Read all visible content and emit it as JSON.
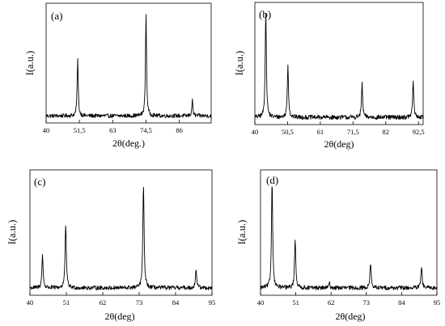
{
  "chart_data": [
    {
      "type": "line",
      "panel_label": "(a)",
      "xlabel": "2θ(deg.)",
      "ylabel": "I(a.u.)",
      "xlim": [
        40,
        97
      ],
      "xticks": [
        40,
        51.5,
        63,
        74.5,
        86
      ],
      "xtick_labels": [
        "40",
        "51,5",
        "63",
        "74,5",
        "86"
      ],
      "baseline": 0.05,
      "noise": 0.018,
      "peaks": [
        {
          "x": 50.9,
          "height": 0.52
        },
        {
          "x": 74.5,
          "height": 0.93
        },
        {
          "x": 90.5,
          "height": 0.14
        }
      ]
    },
    {
      "type": "line",
      "panel_label": "(b)",
      "xlabel": "2θ(deg)",
      "ylabel": "I(a.u.)",
      "xlim": [
        40,
        94
      ],
      "xticks": [
        40,
        50.5,
        61,
        71.5,
        82,
        92.5
      ],
      "xtick_labels": [
        "40",
        "50,5",
        "61",
        "71,5",
        "82",
        "92,5"
      ],
      "baseline": 0.05,
      "noise": 0.02,
      "peaks": [
        {
          "x": 43.5,
          "height": 0.95
        },
        {
          "x": 50.6,
          "height": 0.47
        },
        {
          "x": 74.4,
          "height": 0.3
        },
        {
          "x": 90.8,
          "height": 0.32
        }
      ]
    },
    {
      "type": "line",
      "panel_label": "(c)",
      "xlabel": "2θ(deg)",
      "ylabel": "I(a.u.)",
      "xlim": [
        40,
        95
      ],
      "xticks": [
        40,
        51,
        62,
        73,
        84,
        95
      ],
      "xtick_labels": [
        "40",
        "51",
        "62",
        "73",
        "84",
        "95"
      ],
      "baseline": 0.05,
      "noise": 0.018,
      "peaks": [
        {
          "x": 43.8,
          "height": 0.28
        },
        {
          "x": 50.8,
          "height": 0.55
        },
        {
          "x": 74.3,
          "height": 0.9
        },
        {
          "x": 90.2,
          "height": 0.16
        }
      ]
    },
    {
      "type": "line",
      "panel_label": "(d)",
      "xlabel": "2θ(deg)",
      "ylabel": "I(a.u.)",
      "xlim": [
        40,
        95
      ],
      "xticks": [
        40,
        51,
        62,
        73,
        84,
        95
      ],
      "xtick_labels": [
        "40",
        "51",
        "62",
        "73",
        "84",
        "95"
      ],
      "baseline": 0.05,
      "noise": 0.018,
      "peaks": [
        {
          "x": 43.6,
          "height": 0.93
        },
        {
          "x": 50.8,
          "height": 0.43
        },
        {
          "x": 61.5,
          "height": 0.04
        },
        {
          "x": 74.3,
          "height": 0.22
        },
        {
          "x": 90.2,
          "height": 0.18
        }
      ]
    }
  ]
}
